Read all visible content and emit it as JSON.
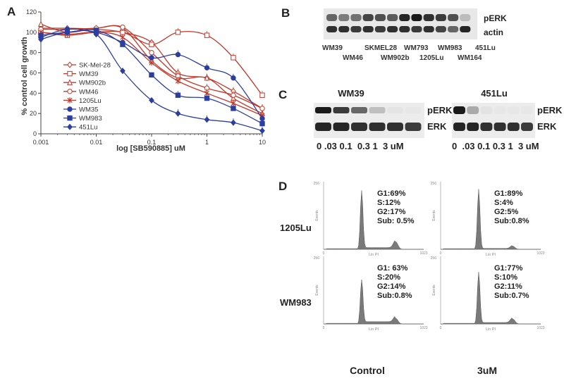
{
  "panels": {
    "A": "A",
    "B": "B",
    "C": "C",
    "D": "D"
  },
  "chart_data": {
    "type": "line",
    "xscale": "log",
    "x": [
      0.001,
      0.003,
      0.01,
      0.03,
      0.1,
      0.3,
      1,
      3,
      10
    ],
    "xlim": [
      0.001,
      10
    ],
    "ylim": [
      0,
      120
    ],
    "xticks": [
      "0.001",
      "0.01",
      "0.1",
      "1",
      "10"
    ],
    "yticks": [
      "0",
      "20",
      "40",
      "60",
      "80",
      "100",
      "120"
    ],
    "xlabel": "log [SB590885] uM",
    "ylabel": "% control cell growth",
    "series": [
      {
        "name": "SK-Mel-28",
        "color": "#c0392b",
        "marker": "diamond-open",
        "values": [
          104,
          104,
          103,
          100,
          90,
          60,
          55,
          42,
          25
        ]
      },
      {
        "name": "WM39",
        "color": "#c0392b",
        "marker": "square-open",
        "values": [
          100,
          97,
          100,
          100,
          88,
          100,
          97,
          75,
          38
        ]
      },
      {
        "name": "WM902b",
        "color": "#c0392b",
        "marker": "triangle-open",
        "values": [
          108,
          100,
          104,
          104,
          72,
          55,
          55,
          35,
          20
        ]
      },
      {
        "name": "WM46",
        "color": "#c0392b",
        "marker": "circle-open",
        "values": [
          103,
          103,
          104,
          105,
          80,
          57,
          45,
          38,
          25
        ]
      },
      {
        "name": "1205Lu",
        "color": "#c0392b",
        "marker": "star",
        "values": [
          100,
          98,
          100,
          95,
          70,
          52,
          40,
          30,
          18
        ]
      },
      {
        "name": "WM35",
        "color": "#2c3e9e",
        "marker": "circle-filled",
        "values": [
          95,
          103,
          100,
          90,
          75,
          78,
          65,
          55,
          15
        ]
      },
      {
        "name": "WM983",
        "color": "#2c3e9e",
        "marker": "square-filled",
        "values": [
          97,
          100,
          102,
          88,
          58,
          38,
          35,
          25,
          10
        ]
      },
      {
        "name": "451Lu",
        "color": "#2c3e9e",
        "marker": "diamond-filled",
        "values": [
          93,
          100,
          98,
          62,
          33,
          20,
          14,
          11,
          3
        ]
      }
    ]
  },
  "panel_b": {
    "top_labels": [
      "WM39",
      "SKMEL28",
      "WM793",
      "WM983",
      "451Lu"
    ],
    "bottom_labels": [
      "WM46",
      "WM902b",
      "1205Lu",
      "WM164"
    ],
    "blot_labels": [
      "pERK",
      "actin"
    ]
  },
  "panel_c": {
    "blots": [
      {
        "title": "WM39",
        "labels": [
          "pERK",
          "ERK"
        ],
        "concentrations": "0 .03 0.1  0.3 1  3 uM"
      },
      {
        "title": "451Lu",
        "labels": [
          "pERK",
          "ERK"
        ],
        "concentrations": "0  .03 0.1 0.3 1  3 uM"
      }
    ]
  },
  "panel_d": {
    "row_labels": [
      "1205Lu",
      "WM983"
    ],
    "col_labels": [
      "Control",
      "3uM"
    ],
    "y_axis_label": "Events",
    "x_axis_label": "Lin PI",
    "y_max": "256",
    "x_min": "0",
    "x_max": "1023",
    "plots": [
      {
        "row": "1205Lu",
        "col": "Control",
        "g1": "G1:69%",
        "s": "S:12%",
        "g2": "G2:17%",
        "sub": "Sub: 0.5%"
      },
      {
        "row": "1205Lu",
        "col": "3uM",
        "g1": "G1:89%",
        "s": "S:4%",
        "g2": "G2:5%",
        "sub": "Sub:0.8%"
      },
      {
        "row": "WM983",
        "col": "Control",
        "g1": "G1: 63%",
        "s": "S:20%",
        "g2": "G2:14%",
        "sub": "Sub:0.8%"
      },
      {
        "row": "WM983",
        "col": "3uM",
        "g1": "G1:77%",
        "s": "S:10%",
        "g2": "G2:11%",
        "sub": "Sub:0.7%"
      }
    ]
  }
}
